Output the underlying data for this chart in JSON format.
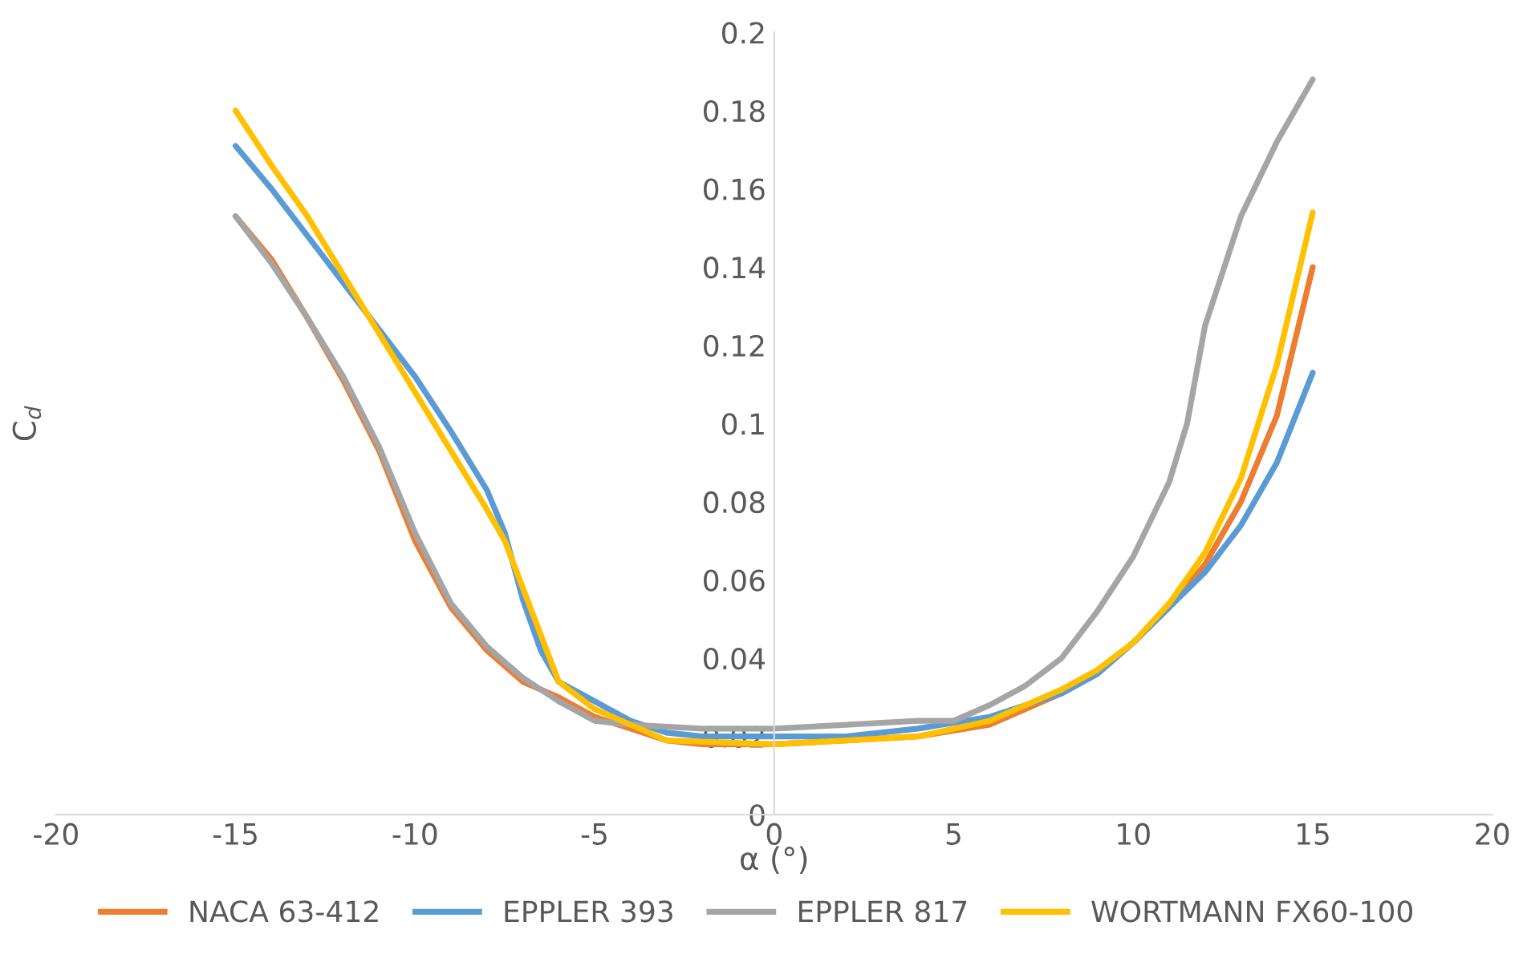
{
  "chart_data": {
    "type": "line",
    "xlabel": "α (°)",
    "ylabel": "C$_{d}$",
    "xlim": [
      -20,
      20
    ],
    "xticks": [
      -20,
      -15,
      -10,
      -5,
      0,
      5,
      10,
      15,
      20
    ],
    "ylim": [
      0,
      0.2
    ],
    "yticks": [
      0,
      0.02,
      0.04,
      0.06,
      0.08,
      0.1,
      0.12,
      0.14,
      0.16,
      0.18,
      0.2
    ],
    "grid": false,
    "legend": "bottom",
    "marker": "none",
    "line_style": "solid",
    "series": [
      {
        "name": "NACA 63-412",
        "color": "#ed7d31",
        "x": [
          -15,
          -14,
          -13,
          -12,
          -11,
          -10,
          -9,
          -8,
          -7,
          -6,
          -5,
          -4,
          -3,
          -2,
          0,
          2,
          4,
          6,
          7,
          8,
          9,
          10,
          11,
          12,
          13,
          14,
          15
        ],
        "values": [
          0.153,
          0.142,
          0.127,
          0.111,
          0.093,
          0.07,
          0.053,
          0.042,
          0.034,
          0.03,
          0.025,
          0.022,
          0.019,
          0.018,
          0.018,
          0.019,
          0.02,
          0.023,
          0.027,
          0.031,
          0.036,
          0.044,
          0.053,
          0.064,
          0.08,
          0.102,
          0.14
        ]
      },
      {
        "name": "EPPLER 393",
        "color": "#5b9bd5",
        "x": [
          -15,
          -14,
          -13,
          -12,
          -11,
          -10,
          -9,
          -8,
          -7.5,
          -7,
          -6.5,
          -6,
          -5,
          -4,
          -3,
          -2,
          0,
          2,
          4,
          6,
          7,
          8,
          9,
          10,
          11,
          12,
          13,
          14,
          15
        ],
        "values": [
          0.171,
          0.16,
          0.148,
          0.136,
          0.124,
          0.112,
          0.098,
          0.083,
          0.072,
          0.055,
          0.042,
          0.034,
          0.029,
          0.024,
          0.021,
          0.02,
          0.02,
          0.02,
          0.022,
          0.025,
          0.028,
          0.031,
          0.036,
          0.044,
          0.053,
          0.062,
          0.074,
          0.09,
          0.113
        ]
      },
      {
        "name": "EPPLER 817",
        "color": "#a5a5a5",
        "x": [
          -15,
          -14,
          -13,
          -12,
          -11,
          -10,
          -9,
          -8,
          -7,
          -6,
          -5,
          -4,
          -2,
          0,
          2,
          4,
          5,
          6,
          7,
          8,
          9,
          10,
          11,
          11.5,
          12,
          13,
          14,
          15
        ],
        "values": [
          0.153,
          0.141,
          0.127,
          0.112,
          0.094,
          0.072,
          0.054,
          0.043,
          0.035,
          0.029,
          0.024,
          0.023,
          0.022,
          0.022,
          0.023,
          0.024,
          0.024,
          0.028,
          0.033,
          0.04,
          0.052,
          0.066,
          0.085,
          0.1,
          0.125,
          0.153,
          0.172,
          0.188
        ]
      },
      {
        "name": "WORTMANN FX60-100",
        "color": "#ffc000",
        "x": [
          -15,
          -14,
          -13,
          -12,
          -11,
          -10,
          -9,
          -8,
          -7.5,
          -7,
          -6,
          -5,
          -4,
          -3,
          0,
          2,
          4,
          6,
          7,
          8,
          9,
          10,
          11,
          12,
          13,
          14,
          15
        ],
        "values": [
          0.18,
          0.166,
          0.153,
          0.138,
          0.123,
          0.108,
          0.093,
          0.078,
          0.07,
          0.058,
          0.034,
          0.027,
          0.023,
          0.019,
          0.018,
          0.019,
          0.02,
          0.024,
          0.028,
          0.032,
          0.037,
          0.044,
          0.054,
          0.067,
          0.086,
          0.115,
          0.154
        ]
      }
    ]
  }
}
